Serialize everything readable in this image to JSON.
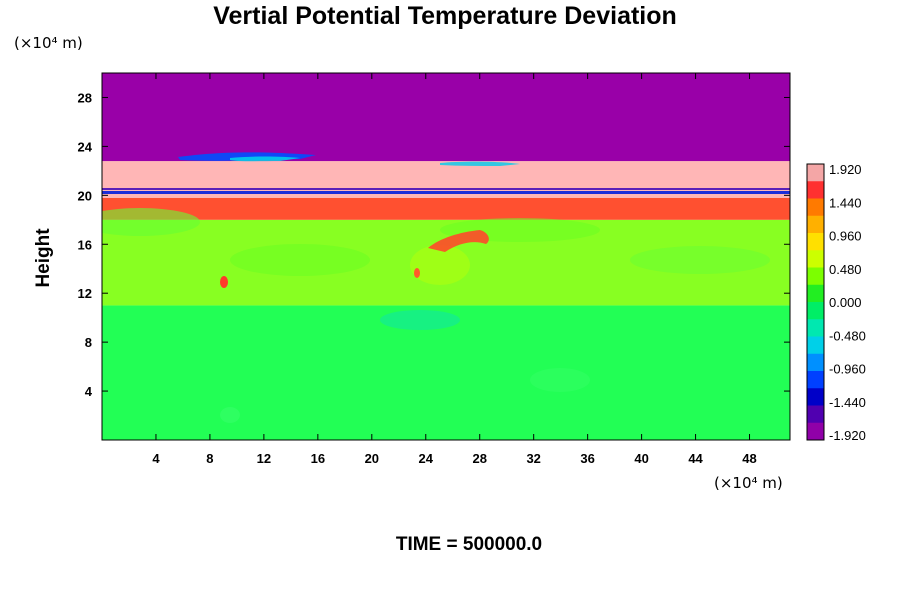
{
  "chart_data": {
    "type": "heatmap",
    "title": "Vertial Potential Temperature Deviation",
    "ylabel": "Height",
    "xlabel": "",
    "x_unit": "(×10⁴ m)",
    "y_unit": "(×10⁴ m)",
    "xlim": [
      0,
      51
    ],
    "ylim": [
      0,
      30
    ],
    "x_ticks": [
      "4",
      "8",
      "12",
      "16",
      "20",
      "24",
      "28",
      "32",
      "36",
      "40",
      "44",
      "48"
    ],
    "y_ticks": [
      "4",
      "8",
      "12",
      "16",
      "20",
      "24",
      "28"
    ],
    "x_tick_values": [
      4,
      8,
      12,
      16,
      20,
      24,
      28,
      32,
      36,
      40,
      44,
      48
    ],
    "y_tick_values": [
      4,
      8,
      12,
      16,
      20,
      24,
      28
    ],
    "colorbar": {
      "range": [
        -1.92,
        1.92
      ],
      "ticks": [
        "1.920",
        "1.440",
        "0.960",
        "0.480",
        "0.000",
        "-0.480",
        "-0.960",
        "-1.440",
        "-1.920"
      ],
      "tick_values": [
        1.92,
        1.44,
        0.96,
        0.48,
        0.0,
        -0.48,
        -0.96,
        -1.44,
        -1.92
      ],
      "colors": [
        "#f4a6a6",
        "#ff3030",
        "#ff7a00",
        "#ffb000",
        "#ffe000",
        "#ccff00",
        "#7cff00",
        "#22ee22",
        "#00ee66",
        "#00e8b0",
        "#00d0e8",
        "#0090ff",
        "#0040ff",
        "#0000c8",
        "#5000b0",
        "#9000a8"
      ]
    },
    "layers": [
      {
        "y": [
          0,
          11
        ],
        "value": -0.05,
        "color": "#22ff55"
      },
      {
        "y": [
          11,
          18
        ],
        "value": 0.2,
        "color": "#88ff22"
      },
      {
        "y": [
          18,
          19.8
        ],
        "value": 1.3,
        "color": "#ff5030"
      },
      {
        "y": [
          19.8,
          22.8
        ],
        "value": 1.92,
        "color": "#ffb6b6"
      },
      {
        "y": [
          22.8,
          30
        ],
        "value": -1.92,
        "color": "#9900a8"
      }
    ],
    "time_label": "TIME = 500000.0"
  }
}
